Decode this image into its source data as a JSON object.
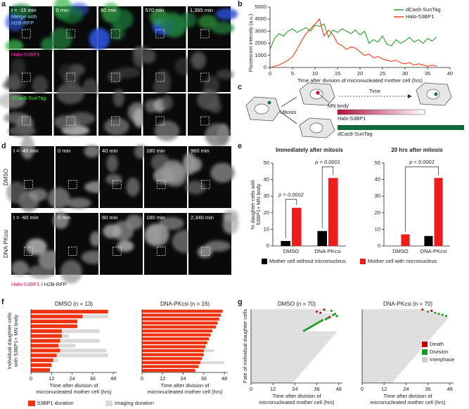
{
  "panel_labels": [
    "a",
    "b",
    "c",
    "d",
    "e",
    "f",
    "g"
  ],
  "panel_a": {
    "times": [
      "t = -15 min",
      "0 min",
      "60 min",
      "570 min",
      "1,395 min"
    ],
    "rows": [
      [
        "Merge with",
        "H2B-RFP"
      ],
      [
        "Halo-53BP1"
      ],
      [
        "dCas9-SunTag"
      ]
    ]
  },
  "panel_c": {
    "mitosis": "Mitosis",
    "mn_body": "MN body",
    "time": "Time",
    "halo": "Halo-53BP1",
    "sun": "dCas9-SunTag"
  },
  "panel_d": {
    "rows": [
      "DMSO",
      "DNA-PKcsi"
    ],
    "times": [
      [
        "t = -40 min",
        "0 min",
        "40 min",
        "180 min",
        "960 min"
      ],
      [
        "t = -60 min",
        "0 min",
        "60 min",
        "180 min",
        "2,340 min"
      ]
    ],
    "caption": [
      "Halo-53BP1",
      " / H2B-RFP"
    ]
  },
  "chart_data": [
    {
      "type": "line",
      "ylabel": "Fluorescent intensity (a.u.)",
      "xlabel": "Time after division of micronucleated mother cell (hrs)",
      "x": [
        0,
        1,
        2,
        3,
        4,
        5,
        6,
        7,
        8,
        9,
        10,
        11,
        12,
        13,
        14,
        15,
        16,
        17,
        18,
        19,
        20,
        21,
        22,
        23,
        24,
        25,
        26,
        27,
        28,
        29,
        30,
        31,
        32,
        33,
        34,
        35,
        36,
        37
      ],
      "series": [
        {
          "name": "dCas9-SunTag",
          "color": "#2ca02c",
          "values": [
            1500,
            2400,
            2800,
            2600,
            3000,
            3200,
            2900,
            3100,
            3300,
            3000,
            3500,
            3400,
            3600,
            2500,
            3100,
            2900,
            3200,
            3000,
            2800,
            3100,
            2700,
            3000,
            2000,
            2300,
            2100,
            2600,
            1900,
            1800,
            2300,
            2000,
            2200,
            2500,
            2100,
            2300,
            2000,
            2400,
            2200,
            2500
          ]
        },
        {
          "name": "Halo-53BP1",
          "color": "#ff3b1f",
          "values": [
            0,
            100,
            200,
            400,
            600,
            900,
            1500,
            2200,
            2800,
            3200,
            3600,
            4000,
            2600,
            3100,
            2700,
            2000,
            1800,
            1500,
            1700,
            1600,
            1300,
            1000,
            1100,
            800,
            900,
            700,
            600,
            500,
            600,
            400,
            300,
            400,
            200,
            300,
            200,
            100,
            200,
            100
          ]
        }
      ],
      "xlim": [
        0,
        40
      ],
      "xticks": [
        0,
        5,
        10,
        15,
        20,
        25,
        30,
        35,
        40
      ],
      "ylim": [
        0,
        5000
      ],
      "yticks": [
        0,
        1000,
        2000,
        3000,
        4000,
        5000
      ],
      "legend": "upper right"
    },
    {
      "type": "bar",
      "title": "Immediately after mitosis",
      "ylabel": [
        "% daughter cells with",
        "53BP1+ MN body"
      ],
      "categories": [
        "DMSO",
        "DNA-PKcsi"
      ],
      "series": [
        {
          "name": "Mother cell without micronucleus",
          "color": "#000000",
          "values": [
            3,
            9
          ]
        },
        {
          "name": "Mother cell with micronucleus",
          "color": "#ee1c1c",
          "values": [
            23,
            41
          ]
        }
      ],
      "annotations": [
        "p = 0.0002",
        "p < 0.0001"
      ],
      "ylim": [
        0,
        50
      ],
      "yticks": [
        0,
        10,
        20,
        30,
        40,
        50
      ]
    },
    {
      "type": "bar",
      "title": "20 hrs after mitosis",
      "categories": [
        "DMSO",
        "DNA-PKcsi"
      ],
      "series": [
        {
          "name": "Mother cell without micronucleus",
          "color": "#000000",
          "values": [
            0,
            6
          ]
        },
        {
          "name": "Mother cell with micronucleus",
          "color": "#ee1c1c",
          "values": [
            7,
            41
          ]
        }
      ],
      "annotations": [
        "p < 0.0001"
      ],
      "ylim": [
        0,
        50
      ],
      "yticks": [
        0,
        10,
        20,
        30,
        40,
        50
      ]
    },
    {
      "type": "hbar",
      "title": "DMSO (n = 13)",
      "ylabel": [
        "Individual daughter cells",
        "with 53BP1+ MN body"
      ],
      "xlabel": [
        "Time after division of",
        "micronucleated mother cell (hrs)"
      ],
      "series": [
        {
          "name": "53BP1 duration",
          "color": "#ee3311",
          "values": [
            45,
            30,
            27,
            27,
            18,
            18,
            17,
            16,
            17,
            15,
            13,
            12,
            11
          ]
        },
        {
          "name": "Imaging duration",
          "color": "#d9d9d9",
          "values": [
            44,
            45,
            27,
            27,
            40,
            22,
            40,
            26,
            44,
            45,
            16,
            12,
            11
          ]
        }
      ],
      "xlim": [
        0,
        50
      ],
      "xticks": [
        0,
        12,
        24,
        36,
        48
      ]
    },
    {
      "type": "hbar",
      "title": "DNA-PKcsi (n = 16)",
      "xlabel": [
        "Time after division of",
        "micronucleated mother cell (hrs)"
      ],
      "series": [
        {
          "name": "53BP1 duration",
          "color": "#ee3311",
          "values": [
            47,
            46,
            45,
            44,
            43,
            41,
            40,
            39,
            38,
            37,
            36,
            36,
            35,
            34,
            33,
            31
          ]
        },
        {
          "name": "Imaging duration",
          "color": "#d9d9d9",
          "values": [
            47,
            46,
            45,
            44,
            43,
            41,
            40,
            39,
            38,
            37,
            42,
            36,
            35,
            48,
            33,
            31
          ]
        }
      ],
      "xlim": [
        0,
        50
      ],
      "xticks": [
        0,
        12,
        24,
        36,
        48
      ]
    },
    {
      "type": "timeline",
      "title": "DMSO (n = 70)",
      "ylabel": "Fate of individual daughter cells",
      "xlabel": [
        "Time after division of",
        "micronucleated mother cell (hrs)"
      ],
      "series": [
        {
          "name": "Death",
          "color": "#c00000"
        },
        {
          "name": "Division",
          "color": "#1a9a1a"
        },
        {
          "name": "Interphase",
          "color": "#cfcfcf"
        }
      ],
      "values": [
        40,
        44,
        36,
        38,
        46,
        45,
        47,
        43,
        42,
        41,
        39,
        38,
        37,
        36,
        35,
        34,
        33,
        32,
        31,
        30,
        29,
        47,
        46.5,
        46,
        45.5,
        45,
        44.5,
        44,
        43.5,
        43,
        42.5,
        42,
        41.5,
        41,
        40.5,
        40,
        39.5,
        39,
        38.5,
        38,
        37.5,
        37,
        36.5,
        36,
        35.5,
        35,
        34.5,
        34,
        33.5,
        33,
        32.5,
        32,
        31.5,
        31,
        30.5,
        30,
        29.5,
        29,
        28.5,
        28,
        27.5,
        27,
        26.5,
        26,
        25.5,
        25,
        24.5,
        24,
        23.5,
        23
      ],
      "fates": [
        0,
        1,
        0,
        0,
        1,
        1,
        1,
        0,
        1,
        1,
        1,
        1,
        1,
        1,
        1,
        1,
        1,
        1,
        1,
        1,
        1,
        2,
        2,
        2,
        2,
        2,
        2,
        2,
        2,
        2,
        2,
        2,
        2,
        2,
        2,
        2,
        2,
        2,
        2,
        2,
        2,
        2,
        2,
        2,
        2,
        2,
        2,
        2,
        2,
        2,
        2,
        2,
        2,
        2,
        2,
        2,
        2,
        2,
        2,
        2,
        2,
        2,
        2,
        2,
        2,
        2,
        2,
        2,
        2,
        2
      ],
      "xlim": [
        0,
        50
      ],
      "xticks": [
        0,
        12,
        24,
        36,
        48
      ]
    },
    {
      "type": "timeline",
      "title": "DNA-PKcsi (n = 70)",
      "xlabel": [
        "Time after division of",
        "micronucleated mother cell (hrs)"
      ],
      "series": [
        {
          "name": "Death",
          "color": "#c00000"
        },
        {
          "name": "Division",
          "color": "#1a9a1a"
        },
        {
          "name": "Interphase",
          "color": "#cfcfcf"
        }
      ],
      "values": [
        33,
        38,
        36,
        40,
        42,
        44,
        46,
        47.5,
        47,
        46.5,
        46,
        45.5,
        45,
        44.5,
        44,
        43.5,
        43,
        42.5,
        42,
        41.5,
        41,
        40.5,
        40,
        39.5,
        39,
        38.5,
        38,
        37.5,
        37,
        36.5,
        36,
        35.5,
        35,
        34.5,
        34,
        33.5,
        33,
        32.5,
        32,
        31.5,
        31,
        30.5,
        30,
        29.5,
        29,
        28.5,
        28,
        27.5,
        27,
        26.5,
        26,
        25.5,
        25,
        24.5,
        24,
        23.5,
        23,
        22.5,
        22,
        21.5,
        21,
        20.5,
        20,
        19.5,
        19,
        18.5,
        18,
        17.5,
        17,
        16.5
      ],
      "fates": [
        0,
        0,
        1,
        1,
        1,
        1,
        1,
        2,
        2,
        2,
        2,
        2,
        2,
        2,
        2,
        2,
        2,
        2,
        2,
        2,
        2,
        2,
        2,
        2,
        2,
        2,
        2,
        2,
        2,
        2,
        2,
        2,
        2,
        2,
        2,
        2,
        2,
        2,
        2,
        2,
        2,
        2,
        2,
        2,
        2,
        2,
        2,
        2,
        2,
        2,
        2,
        2,
        2,
        2,
        2,
        2,
        2,
        2,
        2,
        2,
        2,
        2,
        2,
        2,
        2,
        2,
        2,
        2,
        2,
        2
      ],
      "xlim": [
        0,
        50
      ],
      "xticks": [
        0,
        12,
        24,
        36,
        48
      ]
    }
  ]
}
